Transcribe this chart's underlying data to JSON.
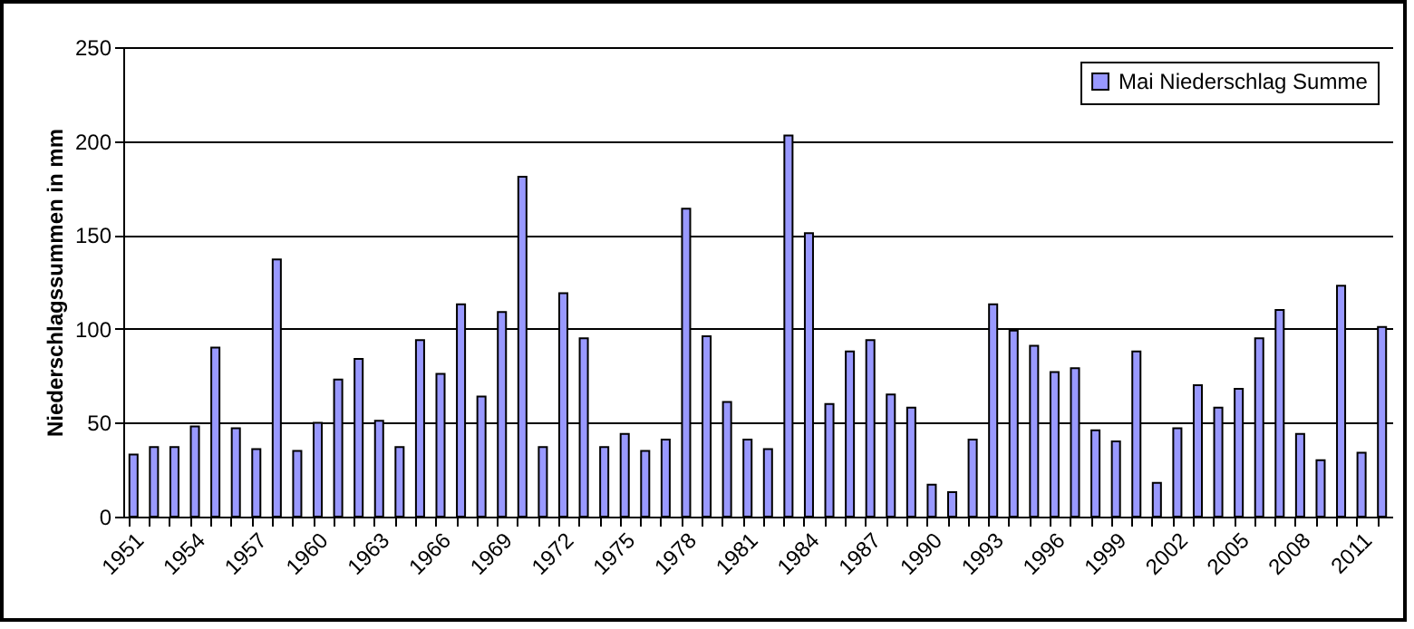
{
  "chart_data": {
    "type": "bar",
    "ylabel": "Niederschlagssummen in mm",
    "categories": [
      "1951",
      null,
      null,
      "1954",
      null,
      null,
      "1957",
      null,
      null,
      "1960",
      null,
      null,
      "1963",
      null,
      null,
      "1966",
      null,
      null,
      "1969",
      null,
      null,
      "1972",
      null,
      null,
      "1975",
      null,
      null,
      "1978",
      null,
      null,
      "1981",
      null,
      null,
      "1984",
      null,
      null,
      "1987",
      null,
      null,
      "1990",
      null,
      null,
      "1993",
      null,
      null,
      "1996",
      null,
      null,
      "1999",
      null,
      null,
      "2002",
      null,
      null,
      "2005",
      null,
      null,
      "2008",
      null,
      null,
      "2011",
      null
    ],
    "series": [
      {
        "name": "Mai Niederschlag Summe",
        "color": "#9999ff",
        "values": [
          33,
          37,
          37,
          48,
          90,
          47,
          36,
          137,
          35,
          50,
          73,
          84,
          51,
          37,
          94,
          76,
          113,
          64,
          109,
          181,
          37,
          119,
          95,
          37,
          44,
          35,
          41,
          164,
          96,
          61,
          41,
          36,
          203,
          151,
          60,
          88,
          94,
          65,
          58,
          17,
          13,
          41,
          113,
          99,
          91,
          77,
          79,
          46,
          40,
          88,
          18,
          47,
          70,
          58,
          68,
          95,
          110,
          44,
          30,
          123,
          34,
          101
        ]
      }
    ],
    "ylim": [
      0,
      250
    ],
    "yticks": [
      0,
      50,
      100,
      150,
      200,
      250
    ],
    "grid": "y",
    "legend": "top right"
  }
}
